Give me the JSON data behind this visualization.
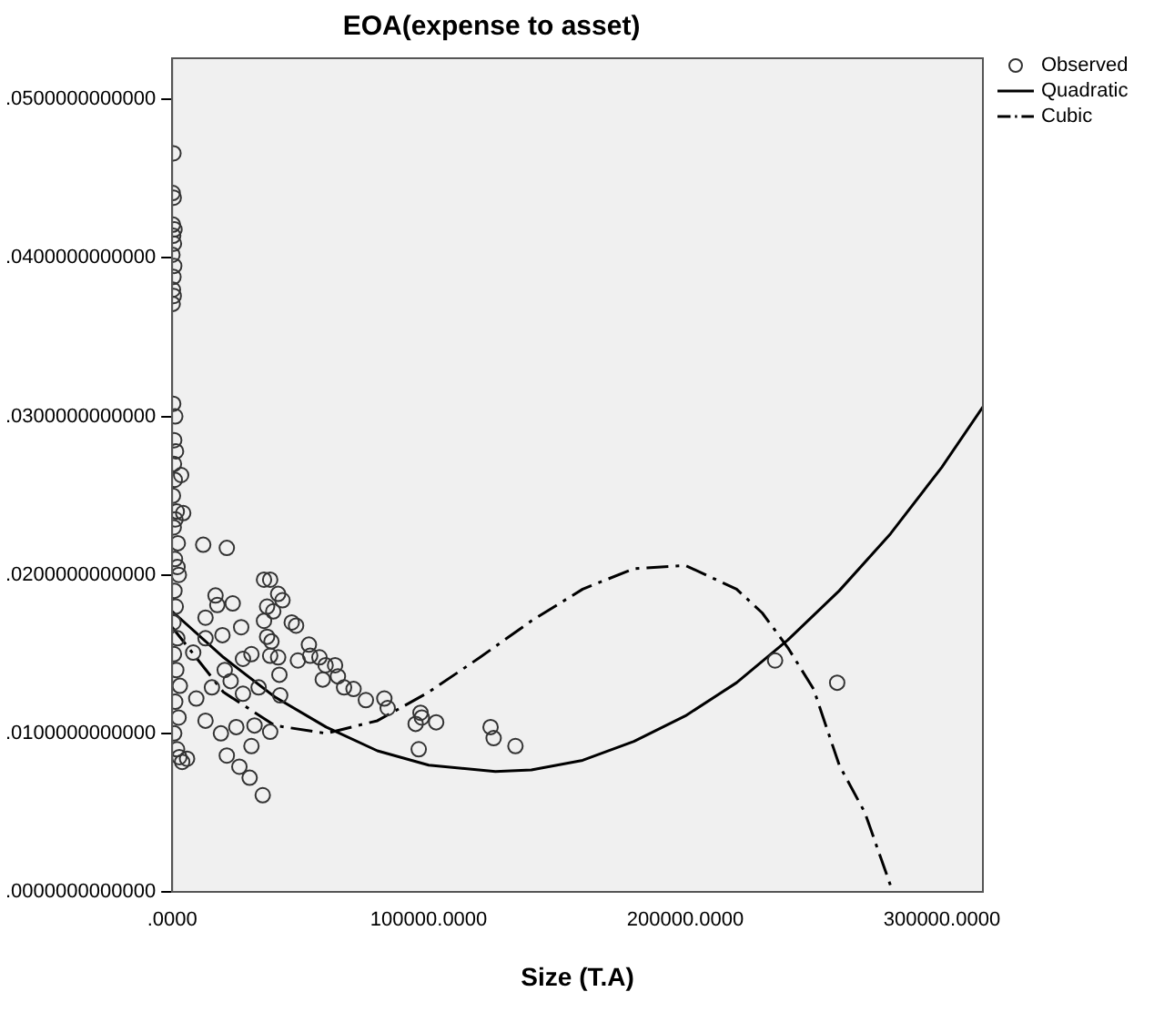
{
  "chart_data": {
    "type": "scatter",
    "title": "EOA(expense to asset)",
    "xlabel": "Size (T.A)",
    "xlim": [
      0,
      316000
    ],
    "xticks": [
      {
        "value": 0,
        "label": ".0000"
      },
      {
        "value": 100000,
        "label": "100000.0000"
      },
      {
        "value": 200000,
        "label": "200000.0000"
      },
      {
        "value": 300000,
        "label": "300000.0000"
      }
    ],
    "ylim": [
      0,
      0.0526
    ],
    "yticks": [
      {
        "value": 0,
        "label": ".0000000000000"
      },
      {
        "value": 0.01,
        "label": ".0100000000000"
      },
      {
        "value": 0.02,
        "label": ".0200000000000"
      },
      {
        "value": 0.03,
        "label": ".0300000000000"
      },
      {
        "value": 0.04,
        "label": ".0400000000000"
      },
      {
        "value": 0.05,
        "label": ".0500000000000"
      }
    ],
    "grid": false,
    "legend": "top right",
    "series": [
      {
        "name": "Observed",
        "type": "scatter",
        "color": "#333333",
        "marker": "circle",
        "x": [
          500,
          200,
          600,
          300,
          900,
          400,
          700,
          100,
          800,
          500,
          300,
          600,
          200,
          400,
          1200,
          800,
          1500,
          700,
          1000,
          300,
          1800,
          600,
          2200,
          1100,
          2600,
          900,
          1400,
          500,
          2000,
          700,
          1600,
          3000,
          1200,
          2500,
          800,
          1900,
          2800,
          3500,
          1300,
          2100,
          4300,
          12100,
          21300,
          35800,
          38200,
          16900,
          17600,
          23600,
          41300,
          43000,
          37000,
          39400,
          35800,
          46600,
          48300,
          13000,
          26900,
          19600,
          37000,
          38700,
          30900,
          38200,
          41300,
          41800,
          53300,
          53800,
          49000,
          57400,
          59800,
          63500,
          58700,
          64600,
          67000,
          70700,
          75500,
          82700,
          84000,
          96800,
          97300,
          94900,
          102900,
          96100,
          124100,
          125300,
          133800,
          30900,
          32100,
          38200,
          21300,
          26200,
          30200,
          35300,
          19000,
          25000,
          13000,
          5800,
          3900,
          9400,
          15500,
          22800,
          27600,
          33700,
          42100,
          20500,
          8200,
          13000,
          27600,
          235000,
          259200
        ],
        "values": [
          0.0466,
          0.0441,
          0.0438,
          0.0421,
          0.0418,
          0.0414,
          0.0409,
          0.0402,
          0.0395,
          0.0388,
          0.038,
          0.0376,
          0.0371,
          0.0308,
          0.03,
          0.0285,
          0.0278,
          0.027,
          0.026,
          0.025,
          0.024,
          0.023,
          0.022,
          0.021,
          0.02,
          0.019,
          0.018,
          0.017,
          0.016,
          0.015,
          0.014,
          0.013,
          0.012,
          0.011,
          0.01,
          0.009,
          0.0085,
          0.0263,
          0.0235,
          0.0205,
          0.0239,
          0.0219,
          0.0217,
          0.0197,
          0.0197,
          0.0187,
          0.0181,
          0.0182,
          0.0188,
          0.0184,
          0.018,
          0.0177,
          0.0171,
          0.017,
          0.0168,
          0.0173,
          0.0167,
          0.0162,
          0.0161,
          0.0158,
          0.015,
          0.0149,
          0.0148,
          0.0137,
          0.0156,
          0.0149,
          0.0146,
          0.0148,
          0.0143,
          0.0143,
          0.0134,
          0.0136,
          0.0129,
          0.0128,
          0.0121,
          0.0122,
          0.0116,
          0.0113,
          0.011,
          0.0106,
          0.0107,
          0.009,
          0.0104,
          0.0097,
          0.0092,
          0.0092,
          0.0105,
          0.0101,
          0.0086,
          0.0079,
          0.0072,
          0.0061,
          0.01,
          0.0104,
          0.0108,
          0.0084,
          0.0082,
          0.0122,
          0.0129,
          0.0133,
          0.0125,
          0.0129,
          0.0124,
          0.014,
          0.0151,
          0.016,
          0.0147,
          0.0146,
          0.0132
        ]
      },
      {
        "name": "Quadratic",
        "type": "line",
        "color": "#000000",
        "marker": "none",
        "line_style": "solid",
        "x": [
          0,
          20000,
          40000,
          60000,
          80000,
          100000,
          126000,
          140000,
          160000,
          180000,
          200000,
          220000,
          240000,
          260000,
          280000,
          300000,
          316000
        ],
        "values": [
          0.0177,
          0.0148,
          0.0123,
          0.0104,
          0.0089,
          0.008,
          0.0076,
          0.0077,
          0.0083,
          0.0095,
          0.0111,
          0.0132,
          0.0159,
          0.019,
          0.0226,
          0.0268,
          0.0306
        ]
      },
      {
        "name": "Cubic",
        "type": "line",
        "color": "#000000",
        "marker": "none",
        "line_style": "dashed",
        "x": [
          0,
          20000,
          40000,
          60000,
          80000,
          100000,
          120000,
          140000,
          160000,
          180000,
          200000,
          220000,
          230000,
          240000,
          250000,
          260000,
          270000,
          280000
        ],
        "values": [
          0.0167,
          0.0126,
          0.0105,
          0.01,
          0.0108,
          0.0126,
          0.0148,
          0.0171,
          0.0191,
          0.0204,
          0.0206,
          0.0191,
          0.0176,
          0.0154,
          0.0128,
          0.008,
          0.005,
          0.0004
        ]
      }
    ]
  }
}
